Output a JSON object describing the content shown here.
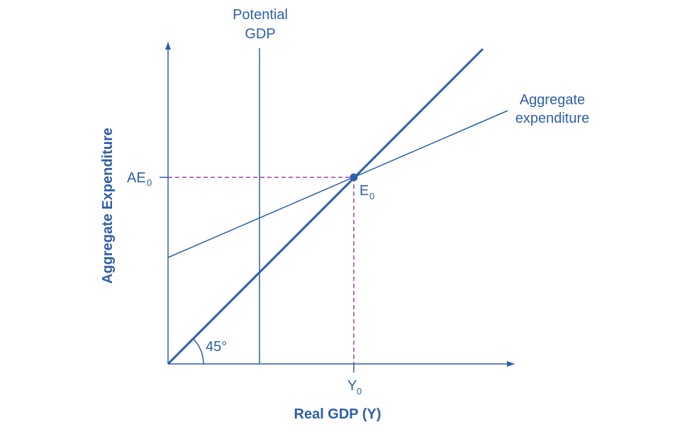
{
  "diagram": {
    "potential_label": [
      "Potential",
      "GDP"
    ],
    "ae_curve_label": [
      "Aggregate",
      "expenditure"
    ],
    "y_level_label": {
      "text": "AE",
      "subscript": "0"
    },
    "equilibrium_label": {
      "text": "E",
      "subscript": "0"
    },
    "x_level_label": {
      "text": "Y",
      "subscript": "0"
    },
    "angle_label": "45°",
    "x_axis_title": "Real GDP (Y)",
    "y_axis_title": "Aggregate Expenditure"
  }
}
